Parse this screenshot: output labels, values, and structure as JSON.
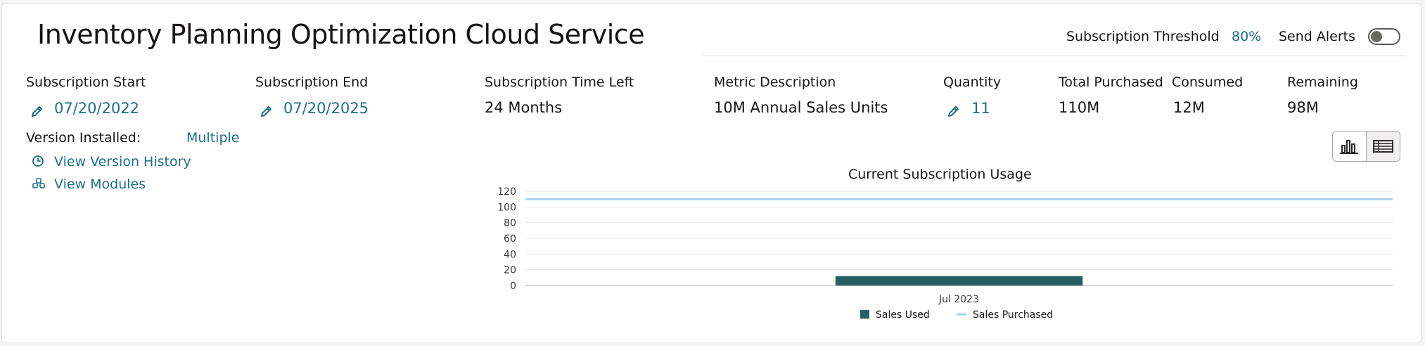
{
  "header": {
    "title": "Inventory Planning Optimization Cloud Service",
    "threshold_label": "Subscription Threshold",
    "threshold_value": "80%",
    "alerts_label": "Send Alerts",
    "alerts_enabled": false
  },
  "fields": {
    "start": {
      "label": "Subscription Start",
      "value": "07/20/2022"
    },
    "end": {
      "label": "Subscription End",
      "value": "07/20/2025"
    },
    "time_left": {
      "label": "Subscription Time Left",
      "value": "24 Months"
    },
    "metric": {
      "label": "Metric Description",
      "value": "10M Annual Sales Units"
    },
    "quantity": {
      "label": "Quantity",
      "value": "11"
    },
    "total_purchased": {
      "label": "Total Purchased",
      "value": "110M"
    },
    "consumed": {
      "label": "Consumed",
      "value": "12M"
    },
    "remaining": {
      "label": "Remaining",
      "value": "98M"
    }
  },
  "version": {
    "label": "Version Installed:",
    "value": "Multiple",
    "history_link": "View Version History",
    "modules_link": "View Modules"
  },
  "view_toggle": {
    "selected": "chart",
    "icons": [
      "bar-chart-icon",
      "table-icon"
    ]
  },
  "colors": {
    "accent": "#1a6f87",
    "bar": "#245f63",
    "line": "#a9d1ea"
  },
  "chart_data": {
    "type": "bar",
    "title": "Current Subscription Usage",
    "categories": [
      "Jul 2023"
    ],
    "series": [
      {
        "name": "Sales Used",
        "kind": "bar",
        "values": [
          12
        ]
      },
      {
        "name": "Sales Purchased",
        "kind": "line",
        "values": [
          110
        ]
      }
    ],
    "ylim": [
      0,
      120
    ],
    "yticks": [
      "0",
      "20",
      "40",
      "60",
      "80",
      "100",
      "120"
    ],
    "xlabel": "",
    "ylabel": "",
    "grid": true,
    "legend": "bottom"
  }
}
